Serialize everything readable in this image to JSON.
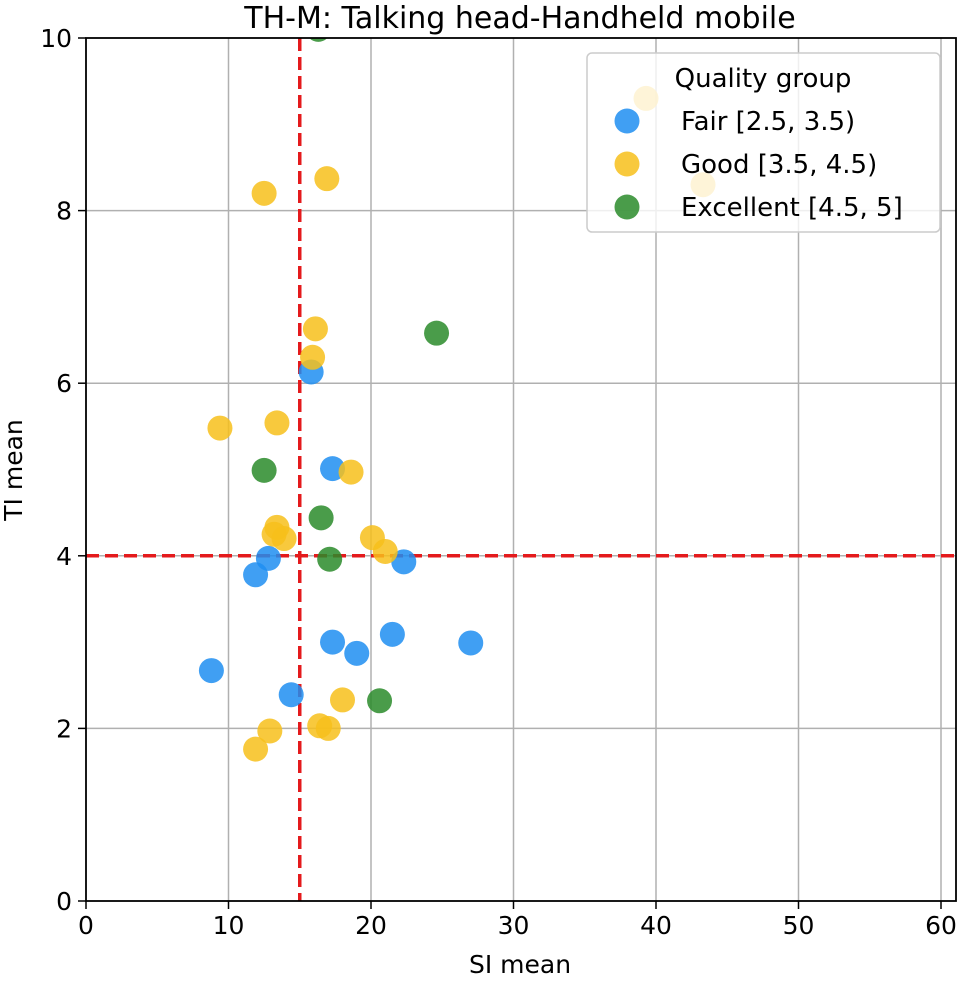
{
  "chart_data": {
    "type": "scatter",
    "title": "TH-M:  Talking head-Handheld mobile",
    "xlabel": "SI mean",
    "ylabel": "TI mean",
    "xlim": [
      0,
      61
    ],
    "ylim": [
      0,
      10
    ],
    "xticks": [
      "0",
      "10",
      "20",
      "30",
      "40",
      "50",
      "60"
    ],
    "yticks": [
      "0",
      "2",
      "4",
      "6",
      "8",
      "10"
    ],
    "grid": true,
    "legend": {
      "title": "Quality group",
      "placement": "upper right"
    },
    "reference_lines": {
      "vertical_x": 15,
      "horizontal_y": 4,
      "color": "#e41a1c",
      "style": "dashed"
    },
    "series": [
      {
        "name": "Fair [2.5, 3.5)",
        "color": "#1f8ef1",
        "points": [
          [
            8.8,
            2.67
          ],
          [
            11.9,
            3.78
          ],
          [
            12.8,
            3.97
          ],
          [
            14.4,
            2.39
          ],
          [
            15.8,
            6.13
          ],
          [
            17.3,
            5.01
          ],
          [
            17.3,
            3.0
          ],
          [
            19.0,
            2.87
          ],
          [
            21.5,
            3.09
          ],
          [
            22.3,
            3.93
          ],
          [
            27.0,
            2.99
          ]
        ]
      },
      {
        "name": "Good [3.5, 4.5)",
        "color": "#f7bf1b",
        "points": [
          [
            9.4,
            5.48
          ],
          [
            11.9,
            1.76
          ],
          [
            12.5,
            8.2
          ],
          [
            12.9,
            1.97
          ],
          [
            13.2,
            4.25
          ],
          [
            13.4,
            4.33
          ],
          [
            13.4,
            5.54
          ],
          [
            13.9,
            4.2
          ],
          [
            15.9,
            6.3
          ],
          [
            16.1,
            6.63
          ],
          [
            16.4,
            2.03
          ],
          [
            16.9,
            8.37
          ],
          [
            17.0,
            2.0
          ],
          [
            18.0,
            2.33
          ],
          [
            18.6,
            4.97
          ],
          [
            20.1,
            4.21
          ],
          [
            21.0,
            4.05
          ],
          [
            39.3,
            9.3
          ],
          [
            43.3,
            8.3
          ]
        ]
      },
      {
        "name": "Excellent [4.5, 5]",
        "color": "#2a8b2a",
        "points": [
          [
            12.5,
            4.99
          ],
          [
            16.3,
            10.1
          ],
          [
            16.5,
            4.44
          ],
          [
            17.1,
            3.96
          ],
          [
            20.6,
            2.32
          ],
          [
            24.6,
            6.58
          ]
        ]
      }
    ]
  }
}
